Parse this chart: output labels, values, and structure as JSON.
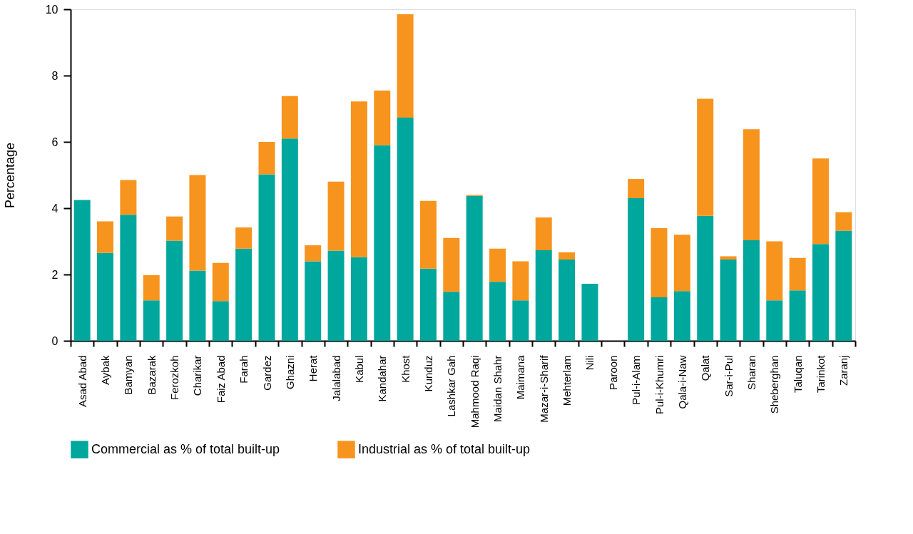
{
  "chart_data": {
    "type": "bar",
    "stacked": true,
    "ylabel": "Percentage",
    "ylim": [
      0,
      10
    ],
    "yticks": [
      0,
      2,
      4,
      6,
      8,
      10
    ],
    "grid": false,
    "legend": "bottom",
    "categories": [
      "Asad Abad",
      "Aybak",
      "Bamyan",
      "Bazarak",
      "Ferozkoh",
      "Charikar",
      "Faiz Abad",
      "Farah",
      "Gardez",
      "Ghazni",
      "Herat",
      "Jalalabad",
      "Kabul",
      "Kandahar",
      "Khost",
      "Kunduz",
      "Lashkar Gah",
      "Mahmood Raqi",
      "Maidan Shahr",
      "Maimana",
      "Mazar-i-Sharif",
      "Mehterlam",
      "Nili",
      "Paroon",
      "Pul-i-Alam",
      "Pul-i-Khumri",
      "Qala-i-Naw",
      "Qalat",
      "Sar-i-Pul",
      "Sharan",
      "Sheberghan",
      "Taluqan",
      "Tarinkot",
      "Zaranj"
    ],
    "series": [
      {
        "name": "Commercial as % of total built-up",
        "color": "#00a79d",
        "values": [
          4.25,
          2.65,
          3.8,
          1.22,
          3.02,
          2.12,
          1.2,
          2.78,
          5.02,
          6.1,
          2.4,
          2.72,
          2.52,
          5.9,
          6.73,
          2.18,
          1.48,
          4.37,
          1.78,
          1.22,
          2.73,
          2.45,
          1.72,
          0,
          4.3,
          1.31,
          1.5,
          3.77,
          2.45,
          3.03,
          1.22,
          1.52,
          2.92,
          3.32
        ]
      },
      {
        "name": "Industrial as % of total built-up",
        "color": "#f7941e",
        "values": [
          0,
          0.95,
          1.05,
          0.76,
          0.73,
          2.88,
          1.15,
          0.64,
          0.98,
          1.28,
          0.48,
          2.08,
          4.7,
          1.65,
          3.12,
          2.04,
          1.62,
          0.03,
          1.0,
          1.18,
          0.99,
          0.22,
          0,
          0,
          0.58,
          2.09,
          1.7,
          3.53,
          0.1,
          3.35,
          1.78,
          0.98,
          2.58,
          0.56
        ]
      }
    ]
  }
}
